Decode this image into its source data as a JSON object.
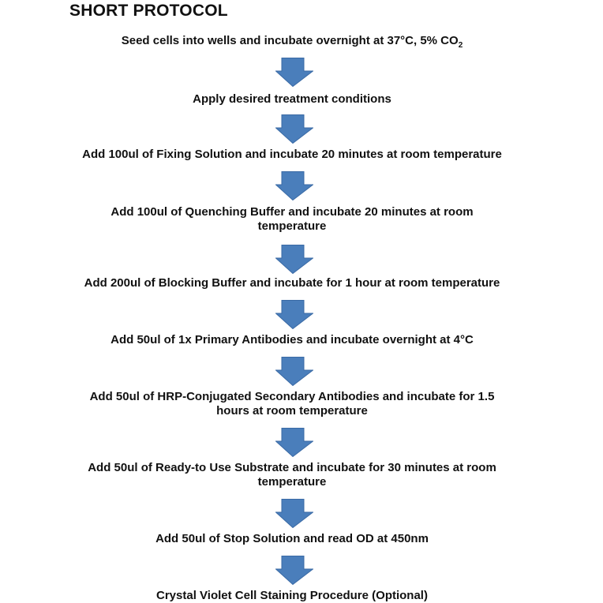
{
  "title": "SHORT PROTOCOL",
  "arrow_color": "#4a7ebb",
  "steps": [
    {
      "text": "Seed cells into wells and incubate overnight at 37°C, 5% CO",
      "sub": "2"
    },
    {
      "text": "Apply desired treatment conditions"
    },
    {
      "text": "Add 100ul of Fixing Solution and incubate 20 minutes at room temperature"
    },
    {
      "text": "Add 100ul of Quenching Buffer and incubate 20 minutes at room temperature"
    },
    {
      "text": "Add 200ul of Blocking Buffer and incubate for 1 hour at room temperature"
    },
    {
      "text": "Add 50ul of 1x Primary Antibodies and incubate overnight at 4°C"
    },
    {
      "text": "Add 50ul of HRP-Conjugated Secondary Antibodies and incubate for 1.5 hours at room temperature"
    },
    {
      "text": "Add 50ul of Ready-to Use Substrate and incubate for 30 minutes at room temperature"
    },
    {
      "text": "Add 50ul of Stop Solution and read OD at 450nm"
    },
    {
      "text": "Crystal Violet Cell Staining Procedure (Optional)"
    }
  ]
}
